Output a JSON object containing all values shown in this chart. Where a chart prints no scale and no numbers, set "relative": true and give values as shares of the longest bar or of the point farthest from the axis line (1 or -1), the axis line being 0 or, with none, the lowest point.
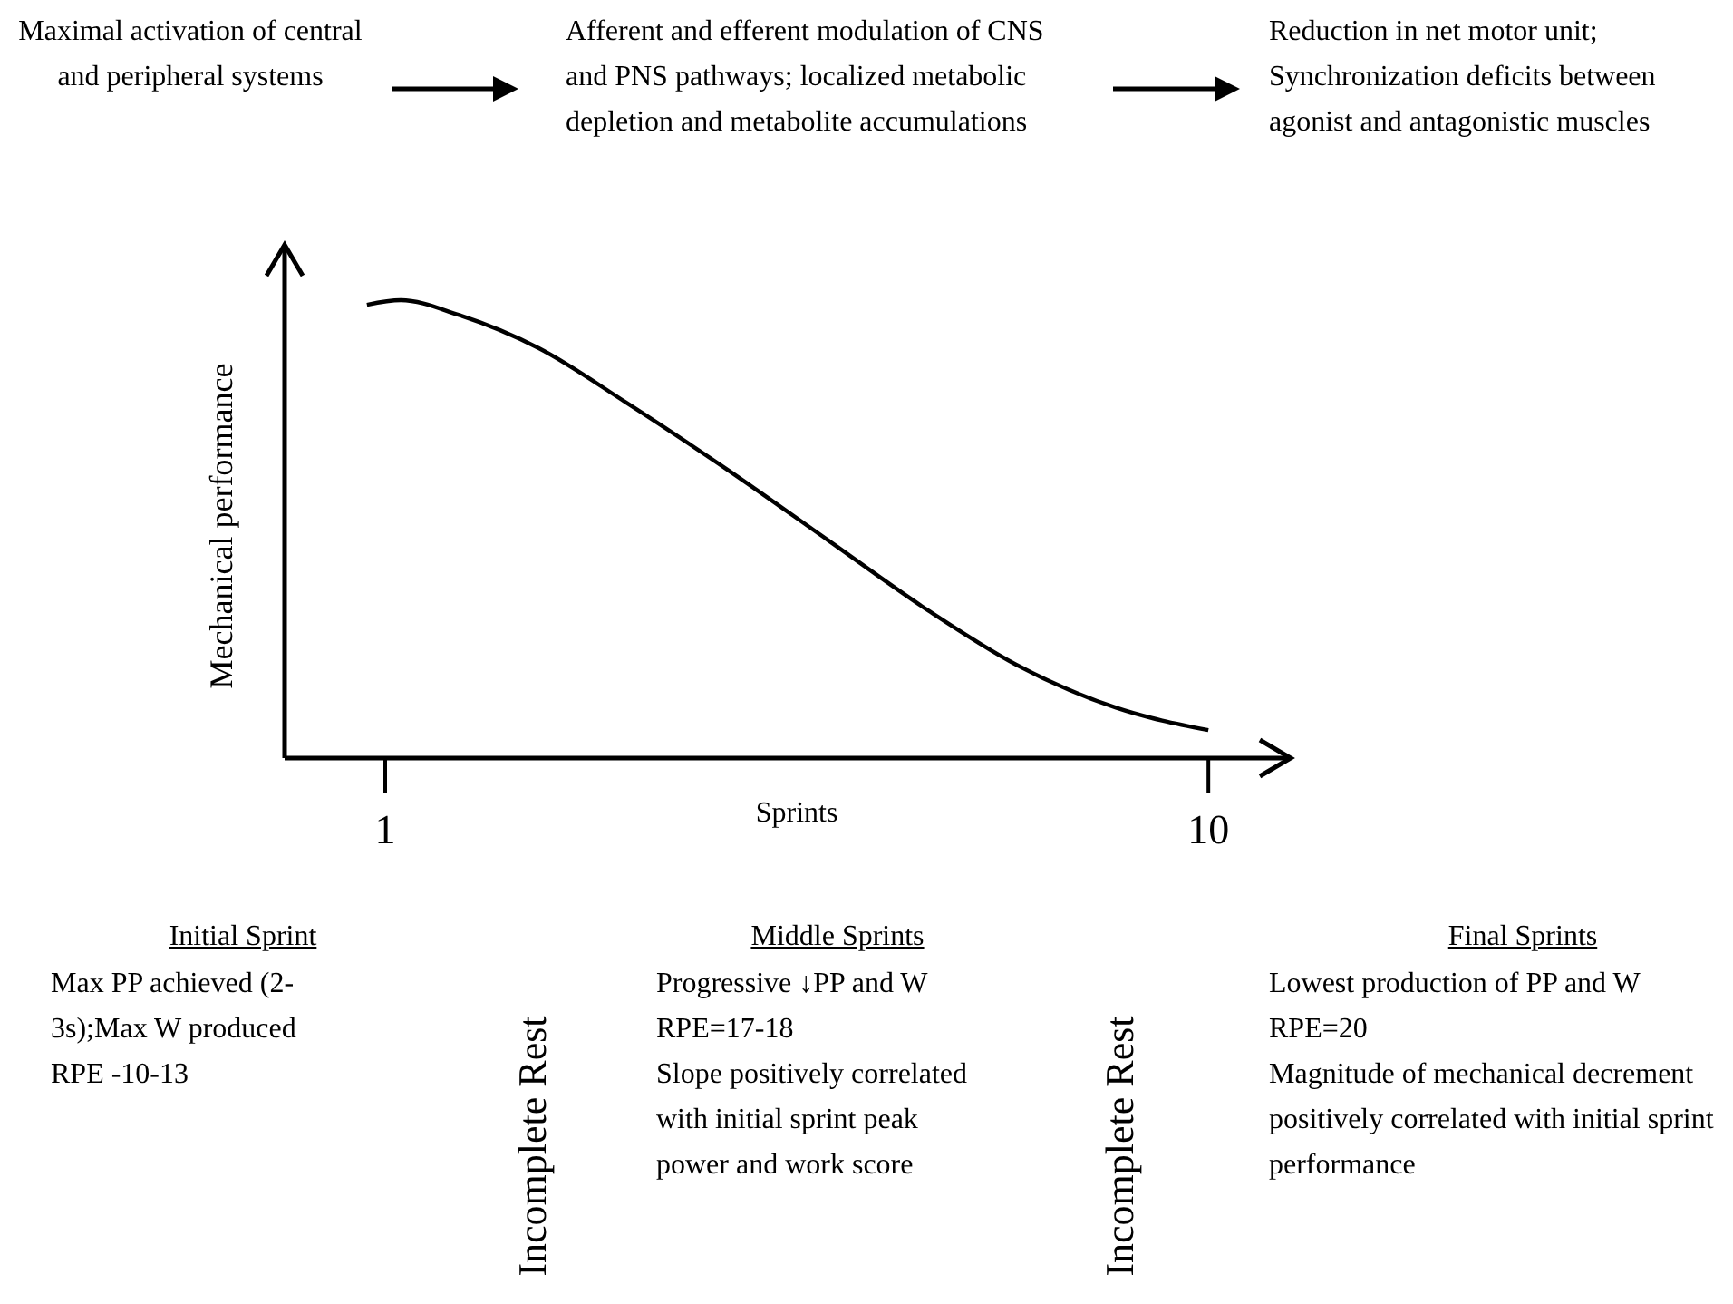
{
  "chart_data": {
    "type": "line",
    "relative": true,
    "xlabel": "Sprints",
    "ylabel": "Mechanical performance",
    "xlim": [
      -0.1,
      10.9
    ],
    "xticks": [
      1,
      10
    ],
    "grid": false,
    "marker": "none",
    "line_style": "solid",
    "series": [
      {
        "color": "#000000",
        "x": [
          0.8,
          1.17,
          1.8,
          2.68,
          3.63,
          4.74,
          5.84,
          6.94,
          7.89,
          8.99,
          10
        ],
        "values": [
          0.99,
          1,
          0.968,
          0.895,
          0.777,
          0.63,
          0.476,
          0.322,
          0.205,
          0.11,
          0.061
        ]
      }
    ],
    "annotations": [
      "Maximal activation of central and peripheral systems",
      "Afferent and efferent modulation of CNS and PNS pathways; localized metabolic depletion and metabolite accumulations",
      "Reduction in net motor unit; Synchronization deficits between agonist and antagonistic muscles",
      "Initial Sprint",
      "Max PP achieved (2-3s);Max W produced\nRPE -10-13",
      "Incomplete Rest",
      "Middle Sprints",
      "Progressive ↓PP and W\nRPE=17-18\nSlope positively correlated with initial sprint peak power and work score",
      "Incomplete Rest",
      "Final Sprints",
      "Lowest production of PP and W\nRPE=20\nMagnitude of mechanical decrement positively correlated with initial sprint performance"
    ]
  }
}
